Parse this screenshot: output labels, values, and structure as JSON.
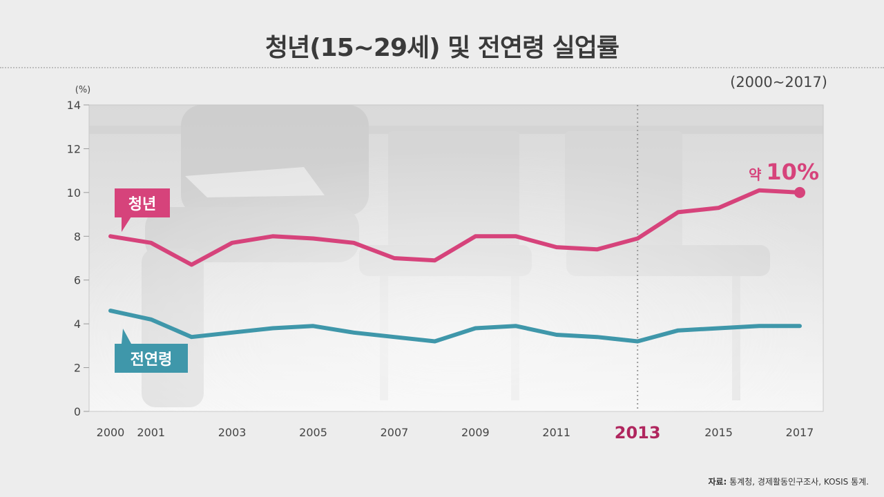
{
  "title": "청년(15~29세) 및 전연령 실업률",
  "source_label": "자료:",
  "source_text": "통계청, 경제활동인구조사, KOSIS 통계.",
  "colors": {
    "youth": "#d6437b",
    "all_ages": "#3f97aa",
    "highlight_year": "#b0265e"
  },
  "chart_data": {
    "type": "line",
    "title": "청년(15~29세) 및 전연령 실업률",
    "subtitle": "(2000~2017)",
    "ylabel": "(%)",
    "xlabel": "",
    "ylim": [
      0,
      14
    ],
    "yticks": [
      0,
      2,
      4,
      6,
      8,
      10,
      12,
      14
    ],
    "xlim": [
      2000,
      2017
    ],
    "x": [
      2000,
      2001,
      2002,
      2003,
      2004,
      2005,
      2006,
      2007,
      2008,
      2009,
      2010,
      2011,
      2012,
      2013,
      2014,
      2015,
      2016,
      2017
    ],
    "xtick_labels": [
      "2000",
      "2001",
      "2003",
      "2005",
      "2007",
      "2009",
      "2011",
      "2013",
      "2015",
      "2017"
    ],
    "highlight_x": 2013,
    "series": [
      {
        "name": "청년",
        "color": "#d6437b",
        "values": [
          8.0,
          7.7,
          6.7,
          7.7,
          8.0,
          7.9,
          7.7,
          7.0,
          6.9,
          8.0,
          8.0,
          7.5,
          7.4,
          7.9,
          9.1,
          9.3,
          10.1,
          10.0
        ]
      },
      {
        "name": "전연령",
        "color": "#3f97aa",
        "values": [
          4.6,
          4.2,
          3.4,
          3.6,
          3.8,
          3.9,
          3.6,
          3.4,
          3.2,
          3.8,
          3.9,
          3.5,
          3.4,
          3.2,
          3.7,
          3.8,
          3.9,
          3.9
        ]
      }
    ],
    "annotation": {
      "prefix": "약",
      "value": "10%",
      "x": 2017,
      "y": 10.0
    },
    "grid": false,
    "legend": "inline-labels"
  }
}
